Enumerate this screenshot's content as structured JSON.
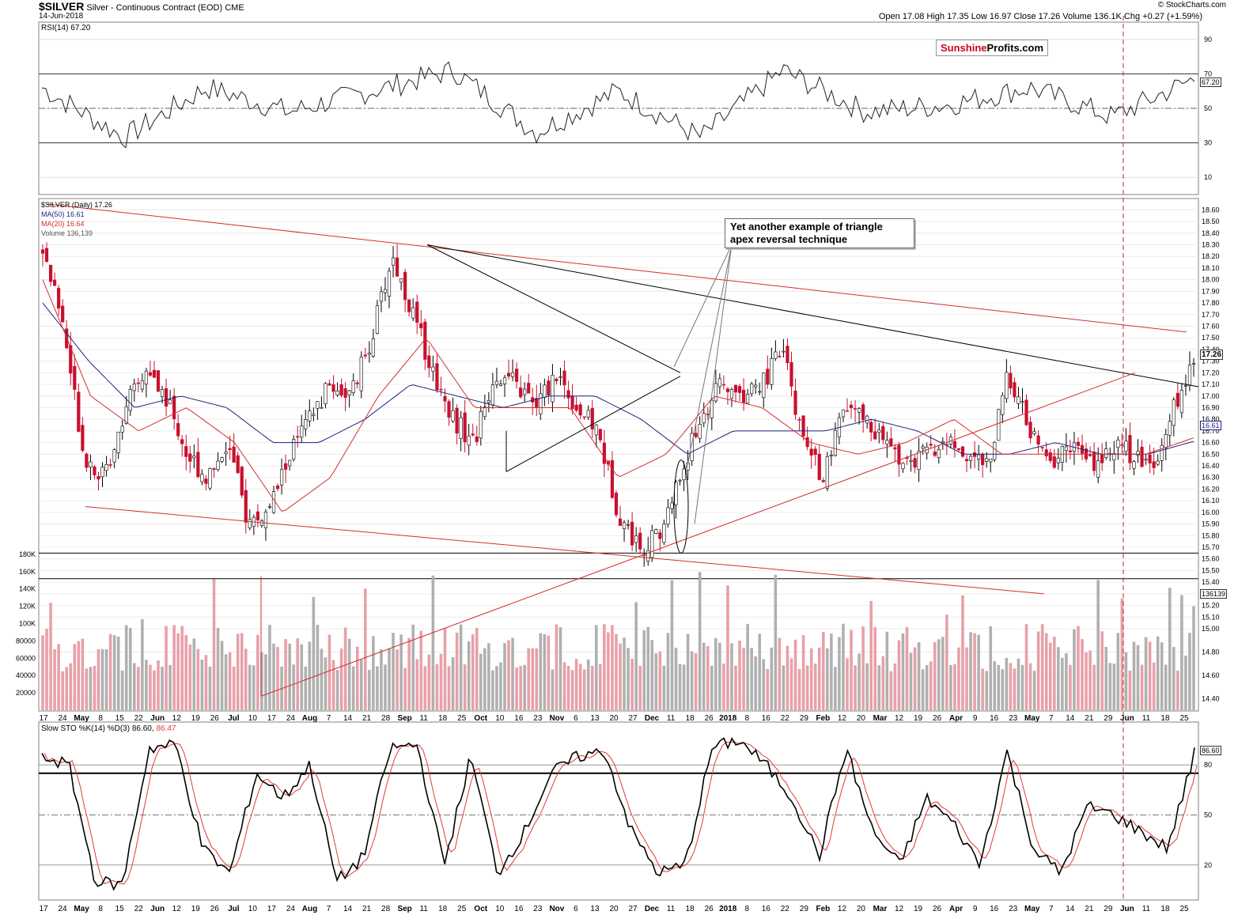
{
  "header": {
    "symbol": "$SILVER",
    "description": "Silver - Continuous Contract (EOD)",
    "exchange": "CME",
    "date": "14-Jun-2018",
    "credit": "© StockCharts.com",
    "ohlc": "Open 17.08  High 17.35  Low 16.97  Close 17.26  Volume 136.1K  Chg +0.27 (+1.59%)"
  },
  "logo": {
    "part1": "Sunshine",
    "part2": "Profits.com",
    "color1": "#d0021b",
    "color2": "#000000"
  },
  "annotation": {
    "line1": "Yet another example of triangle",
    "line2": "apex reversal technique"
  },
  "legend": {
    "price": "$SILVER (Daily) 17.26",
    "ma50": "MA(50) 16.61",
    "ma20": "MA(20) 16.64",
    "volume": "Volume 136,139"
  },
  "colors": {
    "up": "#ffffff",
    "down": "#c8102e",
    "ma50": "#1a237e",
    "ma20": "#d32f2f",
    "vol_up": "#b0b0b0",
    "vol_down": "#e8a0a8"
  },
  "chart_data": [
    {
      "type": "line",
      "name": "RSI(14) 67.20",
      "ylim": [
        0,
        100
      ],
      "y_ticks": [
        10,
        30,
        50,
        70,
        90
      ],
      "last_value_label": "67.20",
      "x": [
        "Apr 17",
        "May",
        "Jun",
        "Jul",
        "Aug",
        "Sep",
        "Oct",
        "Nov",
        "Dec",
        "2018",
        "Feb",
        "Mar",
        "Apr",
        "May",
        "Jun 14"
      ],
      "values": [
        62,
        33,
        62,
        48,
        60,
        72,
        36,
        60,
        33,
        72,
        48,
        52,
        62,
        45,
        67.2
      ]
    },
    {
      "type": "candlestick",
      "title": "$SILVER (Daily) 17.26",
      "ylim": [
        14.3,
        18.65
      ],
      "y_ticks": [
        "14.40",
        "14.60",
        "14.80",
        "15.00",
        "15.10",
        "15.20",
        "15.30",
        "15.40",
        "15.50",
        "15.60",
        "15.70",
        "15.80",
        "15.90",
        "16.00",
        "16.10",
        "16.20",
        "16.30",
        "16.40",
        "16.50",
        "16.60",
        "16.70",
        "16.80",
        "16.90",
        "17.00",
        "17.10",
        "17.20",
        "17.30",
        "17.40",
        "17.50",
        "17.60",
        "17.70",
        "17.80",
        "17.90",
        "18.00",
        "18.10",
        "18.20",
        "18.30",
        "18.40",
        "18.50",
        "18.60"
      ],
      "x_labels": [
        "17",
        "24",
        "May",
        "8",
        "15",
        "22",
        "Jun",
        "12",
        "19",
        "26",
        "Jul",
        "10",
        "17",
        "24",
        "Aug",
        "7",
        "14",
        "21",
        "28",
        "Sep",
        "11",
        "18",
        "25",
        "Oct",
        "10",
        "16",
        "23",
        "Nov",
        "6",
        "13",
        "20",
        "27",
        "Dec",
        "11",
        "18",
        "26",
        "2018",
        "8",
        "16",
        "22",
        "29",
        "Feb",
        "12",
        "20",
        "Mar",
        "12",
        "19",
        "26",
        "Apr",
        "9",
        "16",
        "23",
        "May",
        "7",
        "14",
        "21",
        "29",
        "Jun",
        "11",
        "18",
        "25"
      ],
      "price_label": "17.26",
      "ma50_label": "16.61",
      "close_path": [
        18.3,
        17.6,
        16.5,
        16.3,
        16.9,
        17.2,
        17.0,
        16.5,
        16.3,
        16.6,
        15.9,
        16.0,
        16.5,
        16.8,
        17.1,
        17.0,
        17.5,
        18.2,
        17.7,
        17.2,
        16.8,
        16.6,
        17.2,
        17.1,
        16.9,
        17.2,
        16.9,
        16.7,
        16.0,
        15.7,
        15.8,
        16.3,
        16.8,
        17.1,
        17.0,
        17.1,
        17.4,
        16.6,
        16.3,
        16.9,
        16.8,
        16.6,
        16.4,
        16.5,
        16.6,
        16.5,
        16.4,
        17.2,
        16.7,
        16.4,
        16.6,
        16.4,
        16.6,
        16.5,
        16.4,
        16.9,
        17.26
      ],
      "ma50": [
        17.8,
        17.3,
        16.9,
        17.0,
        16.9,
        16.6,
        16.6,
        16.8,
        17.1,
        17.0,
        16.9,
        17.0,
        17.0,
        16.8,
        16.5,
        16.7,
        16.7,
        16.7,
        16.8,
        16.7,
        16.5,
        16.5,
        16.6,
        16.5,
        16.5,
        16.61
      ],
      "ma20": [
        18.0,
        17.0,
        16.7,
        16.9,
        16.6,
        16.0,
        16.3,
        17.0,
        17.5,
        16.9,
        16.9,
        16.9,
        16.3,
        16.5,
        17.0,
        16.9,
        16.6,
        16.5,
        16.6,
        16.8,
        16.5,
        16.5,
        16.5,
        16.5,
        16.64
      ],
      "volume_ylim": [
        0,
        190000
      ],
      "volume_ticks": [
        "20000",
        "40000",
        "60000",
        "80000",
        "100K",
        "120K",
        "140K",
        "160K",
        "180K"
      ],
      "volume_last_label": "136139"
    },
    {
      "type": "line",
      "name": "Slow STO %K(14) %D(3) 86.60, 86.47",
      "title_k": "Slow STO %K(14) %D(3) 86.60,",
      "title_d": "86.47",
      "ylim": [
        0,
        100
      ],
      "y_ticks": [
        20,
        50,
        80
      ],
      "last_value_label": "86.60",
      "k_values": [
        85,
        80,
        10,
        8,
        90,
        92,
        30,
        15,
        75,
        60,
        80,
        10,
        25,
        90,
        92,
        20,
        85,
        15,
        40,
        75,
        85,
        88,
        40,
        15,
        20,
        90,
        95,
        80,
        60,
        25,
        90,
        40,
        20,
        60,
        45,
        20,
        88,
        30,
        15,
        55,
        50,
        40,
        30,
        86.6
      ]
    }
  ]
}
